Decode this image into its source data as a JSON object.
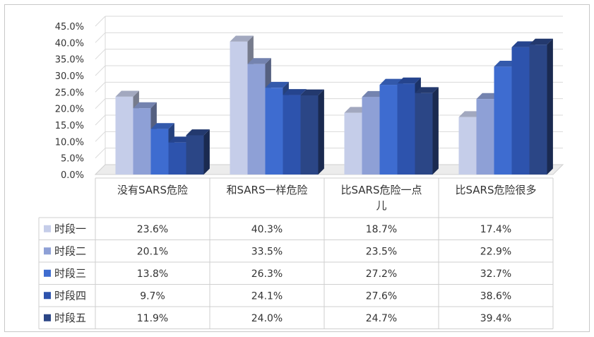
{
  "chart_data": {
    "type": "bar",
    "ylim": [
      0,
      45
    ],
    "ytick_labels": [
      "0.0%",
      "5.0%",
      "10.0%",
      "15.0%",
      "20.0%",
      "25.0%",
      "30.0%",
      "35.0%",
      "40.0%",
      "45.0%"
    ],
    "category_labels": [
      [
        "没有SARS危险"
      ],
      [
        "和SARS一样危险"
      ],
      [
        "比SARS危险一点",
        "儿"
      ],
      [
        "比SARS危险很多"
      ]
    ],
    "series": [
      {
        "name": "时段一",
        "color": "#c5cde9",
        "values": [
          23.6,
          40.3,
          18.7,
          17.4
        ],
        "labels": [
          "23.6%",
          "40.3%",
          "18.7%",
          "17.4%"
        ]
      },
      {
        "name": "时段二",
        "color": "#8ea0d6",
        "values": [
          20.1,
          33.5,
          23.5,
          22.9
        ],
        "labels": [
          "20.1%",
          "33.5%",
          "23.5%",
          "22.9%"
        ]
      },
      {
        "name": "时段三",
        "color": "#3e6cd0",
        "values": [
          13.8,
          26.3,
          27.2,
          32.7
        ],
        "labels": [
          "13.8%",
          "26.3%",
          "27.2%",
          "32.7%"
        ]
      },
      {
        "name": "时段四",
        "color": "#2d53ad",
        "values": [
          9.7,
          24.1,
          27.6,
          38.6
        ],
        "labels": [
          "9.7%",
          "24.1%",
          "27.6%",
          "38.6%"
        ]
      },
      {
        "name": "时段五",
        "color": "#2b4686",
        "values": [
          11.9,
          24.0,
          24.7,
          39.4
        ],
        "labels": [
          "11.9%",
          "24.0%",
          "24.7%",
          "39.4%"
        ]
      }
    ],
    "grid": true,
    "legend": "data-table"
  }
}
